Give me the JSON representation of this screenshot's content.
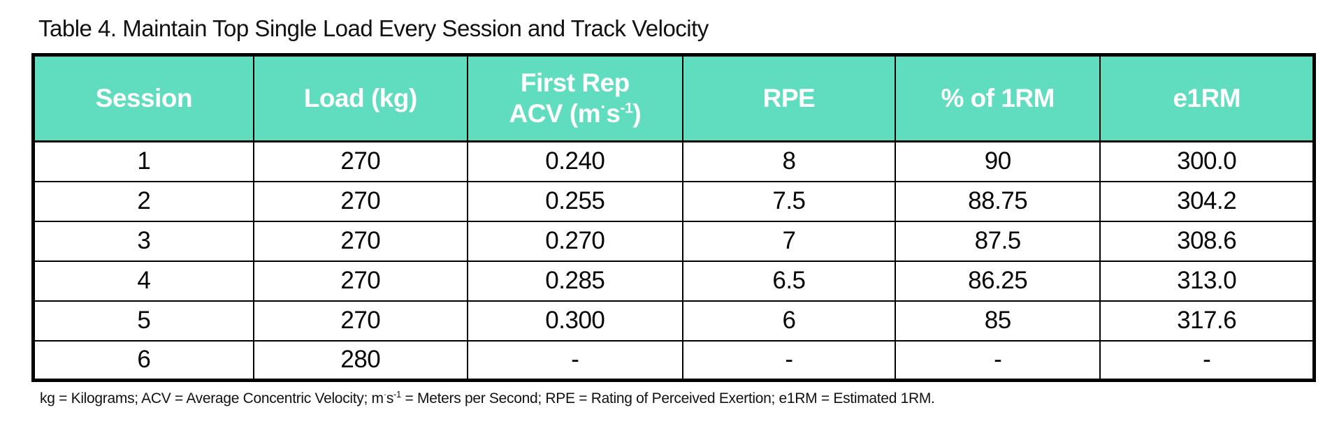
{
  "title": "Table 4. Maintain Top Single Load Every Session and Track Velocity",
  "colors": {
    "header_bg": "#5FDDBE",
    "header_text": "#FFFFFF",
    "border": "#000000",
    "body_text": "#050505"
  },
  "table": {
    "header": {
      "session": "Session",
      "load": "Load (kg)",
      "acv_line1": "First Rep",
      "acv_line2_prefix": "ACV (m",
      "acv_dot": "·",
      "acv_s": "s",
      "acv_exp": "-1",
      "acv_close": ")",
      "rpe": "RPE",
      "pct_1rm": "% of 1RM",
      "e1rm": "e1RM"
    },
    "rows": [
      [
        "1",
        "270",
        "0.240",
        "8",
        "90",
        "300.0"
      ],
      [
        "2",
        "270",
        "0.255",
        "7.5",
        "88.75",
        "304.2"
      ],
      [
        "3",
        "270",
        "0.270",
        "7",
        "87.5",
        "308.6"
      ],
      [
        "4",
        "270",
        "0.285",
        "6.5",
        "86.25",
        "313.0"
      ],
      [
        "5",
        "270",
        "0.300",
        "6",
        "85",
        "317.6"
      ],
      [
        "6",
        "280",
        "-",
        "-",
        "-",
        "-"
      ]
    ]
  },
  "footnote": {
    "part1": "kg = Kilograms; ACV = Average Concentric Velocity; m",
    "dot": "·",
    "s": "s",
    "exp": "-1",
    "part2": " = Meters per Second; RPE = Rating of Perceived Exertion; e1RM = Estimated 1RM."
  },
  "chart_data": {
    "type": "table",
    "title": "Table 4. Maintain Top Single Load Every Session and Track Velocity",
    "columns": [
      "Session",
      "Load (kg)",
      "First Rep ACV (m·s⁻¹)",
      "RPE",
      "% of 1RM",
      "e1RM"
    ],
    "rows": [
      [
        1,
        270,
        0.24,
        8,
        90,
        300.0
      ],
      [
        2,
        270,
        0.255,
        7.5,
        88.75,
        304.2
      ],
      [
        3,
        270,
        0.27,
        7,
        87.5,
        308.6
      ],
      [
        4,
        270,
        0.285,
        6.5,
        86.25,
        313.0
      ],
      [
        5,
        270,
        0.3,
        6,
        85,
        317.6
      ],
      [
        6,
        280,
        null,
        null,
        null,
        null
      ]
    ],
    "footnote": "kg = Kilograms; ACV = Average Concentric Velocity; m·s⁻¹ = Meters per Second; RPE = Rating of Perceived Exertion; e1RM = Estimated 1RM."
  }
}
